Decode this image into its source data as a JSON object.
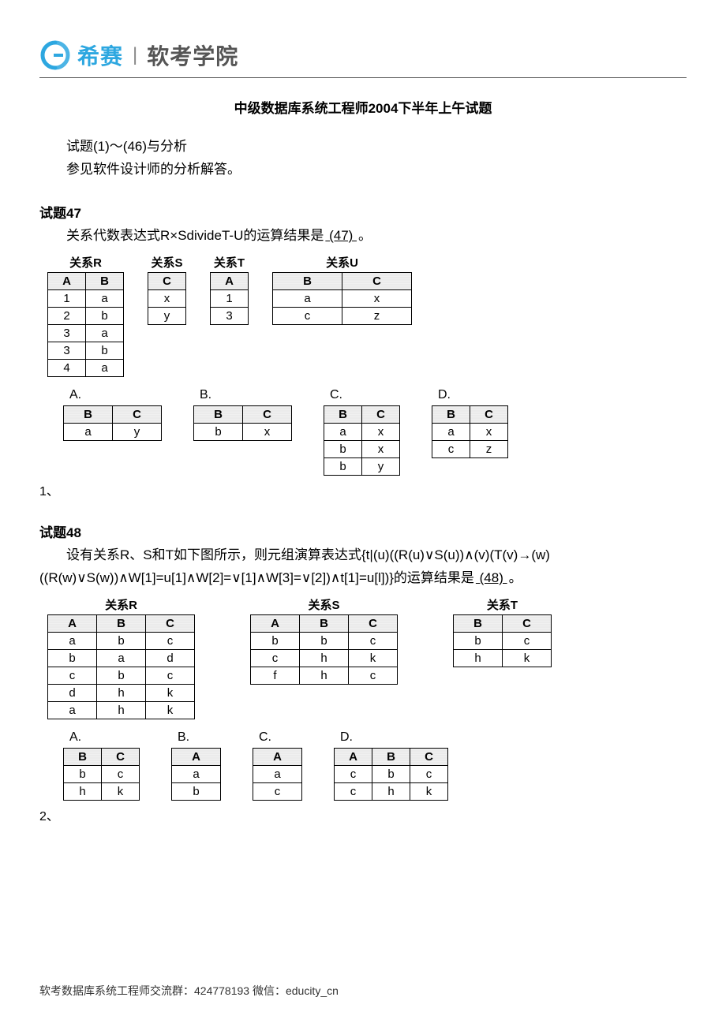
{
  "brand": {
    "name_cn": "希赛",
    "academy": "软考学院",
    "brand_color": "#2da7e0",
    "text_color": "#555555"
  },
  "title": "中级数据库系统工程师2004下半年上午试题",
  "intro": {
    "line1": "试题(1)～(46)与分析",
    "line2": "参见软件设计师的分析解答。"
  },
  "q47": {
    "label": "试题47",
    "text_prefix": "关系代数表达式R×SdivideT-U的运算结果是",
    "blank": "  (47)  ",
    "text_suffix": "。",
    "rel_R": {
      "caption": "关系R",
      "columns": [
        "A",
        "B"
      ],
      "rows": [
        [
          "1",
          "a"
        ],
        [
          "2",
          "b"
        ],
        [
          "3",
          "a"
        ],
        [
          "3",
          "b"
        ],
        [
          "4",
          "a"
        ]
      ]
    },
    "rel_S": {
      "caption": "关系S",
      "columns": [
        "C"
      ],
      "rows": [
        [
          "x"
        ],
        [
          "y"
        ]
      ]
    },
    "rel_T": {
      "caption": "关系T",
      "columns": [
        "A"
      ],
      "rows": [
        [
          "1"
        ],
        [
          "3"
        ]
      ]
    },
    "rel_U": {
      "caption": "关系U",
      "columns": [
        "B",
        "C"
      ],
      "rows": [
        [
          "a",
          "x"
        ],
        [
          "c",
          "z"
        ]
      ]
    },
    "options": {
      "A": {
        "label": "A.",
        "columns": [
          "B",
          "C"
        ],
        "rows": [
          [
            "a",
            "y"
          ]
        ]
      },
      "B": {
        "label": "B.",
        "columns": [
          "B",
          "C"
        ],
        "rows": [
          [
            "b",
            "x"
          ]
        ]
      },
      "C": {
        "label": "C.",
        "columns": [
          "B",
          "C"
        ],
        "rows": [
          [
            "a",
            "x"
          ],
          [
            "b",
            "x"
          ],
          [
            "b",
            "y"
          ]
        ]
      },
      "D": {
        "label": "D.",
        "columns": [
          "B",
          "C"
        ],
        "rows": [
          [
            "a",
            "x"
          ],
          [
            "c",
            "z"
          ]
        ]
      }
    },
    "qnum": "1、"
  },
  "q48": {
    "label": "试题48",
    "text_prefix": "设有关系R、S和T如下图所示，则元组演算表达式{t|(u)((R(u)∨S(u))∧(v)(T(v)→(w)((R(w)∨S(w))∧W[1]=u[1]∧W[2]=∨[1]∧W[3]=∨[2])∧t[1]=u[l])}的运算结果是",
    "blank": "  (48)  ",
    "text_suffix": "。",
    "rel_R": {
      "caption": "关系R",
      "columns": [
        "A",
        "B",
        "C"
      ],
      "rows": [
        [
          "a",
          "b",
          "c"
        ],
        [
          "b",
          "a",
          "d"
        ],
        [
          "c",
          "b",
          "c"
        ],
        [
          "d",
          "h",
          "k"
        ],
        [
          "a",
          "h",
          "k"
        ]
      ]
    },
    "rel_S": {
      "caption": "关系S",
      "columns": [
        "A",
        "B",
        "C"
      ],
      "rows": [
        [
          "b",
          "b",
          "c"
        ],
        [
          "c",
          "h",
          "k"
        ],
        [
          "f",
          "h",
          "c"
        ]
      ]
    },
    "rel_T": {
      "caption": "关系T",
      "columns": [
        "B",
        "C"
      ],
      "rows": [
        [
          "b",
          "c"
        ],
        [
          "h",
          "k"
        ]
      ]
    },
    "options": {
      "A": {
        "label": "A.",
        "columns": [
          "B",
          "C"
        ],
        "rows": [
          [
            "b",
            "c"
          ],
          [
            "h",
            "k"
          ]
        ]
      },
      "B": {
        "label": "B.",
        "columns": [
          "A"
        ],
        "rows": [
          [
            "a"
          ],
          [
            "b"
          ]
        ]
      },
      "C": {
        "label": "C.",
        "columns": [
          "A"
        ],
        "rows": [
          [
            "a"
          ],
          [
            "c"
          ]
        ]
      },
      "D": {
        "label": "D.",
        "columns": [
          "A",
          "B",
          "C"
        ],
        "rows": [
          [
            "c",
            "b",
            "c"
          ],
          [
            "c",
            "h",
            "k"
          ]
        ]
      }
    },
    "qnum": "2、"
  },
  "footer": {
    "text": "软考数据库系统工程师交流群：424778193    微信：educity_cn"
  },
  "style": {
    "cell_min_width_small": 48,
    "cell_min_width_wide": 88
  }
}
